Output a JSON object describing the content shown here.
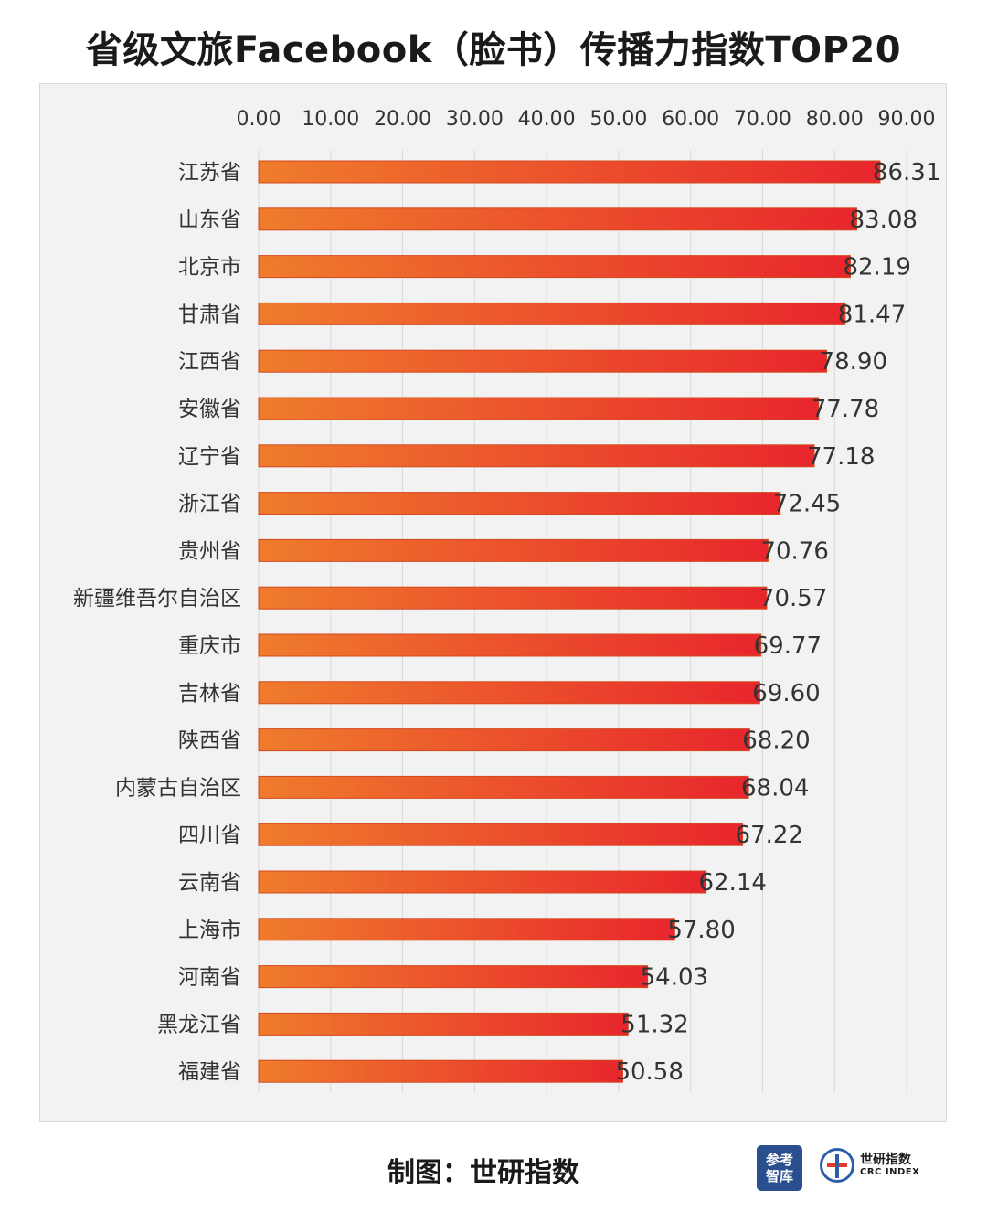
{
  "title": "省级文旅Facebook（脸书）传播力指数TOP20",
  "footer": {
    "credit": "制图：世研指数"
  },
  "logos": {
    "cankao": {
      "line1": "参考",
      "line2": "智库"
    },
    "crc": {
      "cn": "世研指数",
      "en": "CRC INDEX"
    }
  },
  "colors": {
    "bar_start": "#ef7c2c",
    "bar_end": "#e8262c",
    "frame_bg": "#f2f2f2",
    "grid": "#d9d9d9",
    "text": "#333333"
  },
  "chart_data": {
    "type": "bar",
    "orientation": "horizontal",
    "title": "省级文旅Facebook（脸书）传播力指数TOP20",
    "xlabel": "",
    "ylabel": "",
    "xlim": [
      0,
      90
    ],
    "x_ticks": [
      "0.00",
      "10.00",
      "20.00",
      "30.00",
      "40.00",
      "50.00",
      "60.00",
      "70.00",
      "80.00",
      "90.00"
    ],
    "x_axis_position": "top",
    "grid": "vertical",
    "legend": "none",
    "categories": [
      "江苏省",
      "山东省",
      "北京市",
      "甘肃省",
      "江西省",
      "安徽省",
      "辽宁省",
      "浙江省",
      "贵州省",
      "新疆维吾尔自治区",
      "重庆市",
      "吉林省",
      "陕西省",
      "内蒙古自治区",
      "四川省",
      "云南省",
      "上海市",
      "河南省",
      "黑龙江省",
      "福建省"
    ],
    "values": [
      86.31,
      83.08,
      82.19,
      81.47,
      78.9,
      77.78,
      77.18,
      72.45,
      70.76,
      70.57,
      69.77,
      69.6,
      68.2,
      68.04,
      67.22,
      62.14,
      57.8,
      54.03,
      51.32,
      50.58
    ],
    "value_labels": [
      "86.31",
      "83.08",
      "82.19",
      "81.47",
      "78.90",
      "77.78",
      "77.18",
      "72.45",
      "70.76",
      "70.57",
      "69.77",
      "69.60",
      "68.20",
      "68.04",
      "67.22",
      "62.14",
      "57.80",
      "54.03",
      "51.32",
      "50.58"
    ]
  }
}
